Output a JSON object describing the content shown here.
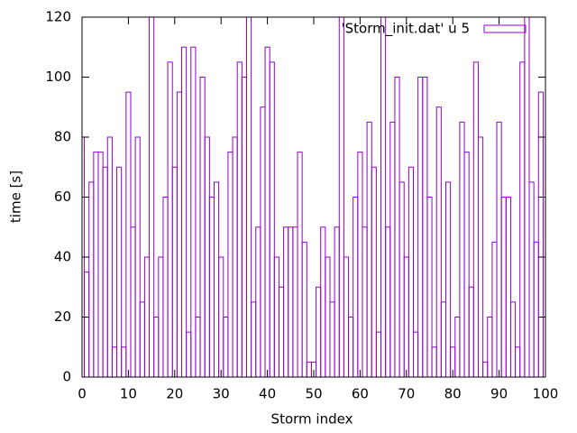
{
  "chart_data": {
    "type": "boxes",
    "xlabel": "Storm index",
    "ylabel": "time [s]",
    "series": [
      {
        "name": "'Storm_init.dat' u 5",
        "color": "#9400d3",
        "x": [
          0,
          1,
          2,
          3,
          4,
          5,
          6,
          7,
          8,
          9,
          10,
          11,
          12,
          13,
          14,
          15,
          16,
          17,
          18,
          19,
          20,
          21,
          22,
          23,
          24,
          25,
          26,
          27,
          28,
          29,
          30,
          31,
          32,
          33,
          34,
          35,
          36,
          37,
          38,
          39,
          40,
          41,
          42,
          43,
          44,
          45,
          46,
          47,
          48,
          49,
          50,
          51,
          52,
          53,
          54,
          55,
          56,
          57,
          58,
          59,
          60,
          61,
          62,
          63,
          64,
          65,
          66,
          67,
          68,
          69,
          70,
          71,
          72,
          73,
          74,
          75,
          76,
          77,
          78,
          79,
          80,
          81,
          82,
          83,
          84,
          85,
          86,
          87,
          88,
          89,
          90,
          91,
          92,
          93,
          94,
          95,
          96,
          97,
          98,
          99,
          100
        ],
        "values": [
          80,
          35,
          65,
          75,
          75,
          70,
          80,
          10,
          70,
          10,
          95,
          50,
          80,
          25,
          40,
          125,
          20,
          40,
          60,
          105,
          70,
          95,
          110,
          15,
          110,
          20,
          100,
          80,
          60,
          65,
          40,
          20,
          75,
          80,
          105,
          100,
          125,
          25,
          50,
          90,
          110,
          105,
          40,
          30,
          50,
          50,
          50,
          75,
          45,
          5,
          5,
          30,
          50,
          40,
          25,
          50,
          125,
          40,
          20,
          60,
          75,
          50,
          85,
          70,
          15,
          125,
          50,
          85,
          100,
          65,
          40,
          70,
          15,
          100,
          100,
          60,
          10,
          90,
          25,
          65,
          10,
          20,
          85,
          75,
          30,
          105,
          80,
          5,
          20,
          45,
          85,
          60,
          60,
          25,
          10,
          105,
          125,
          65,
          45,
          95,
          80
        ]
      }
    ],
    "xlim": [
      0,
      100
    ],
    "xticks": [
      0,
      10,
      20,
      30,
      40,
      50,
      60,
      70,
      80,
      90,
      100
    ],
    "ylim": [
      0,
      120
    ],
    "yticks": [
      0,
      20,
      40,
      60,
      80,
      100,
      120
    ],
    "legend": "top-right"
  }
}
